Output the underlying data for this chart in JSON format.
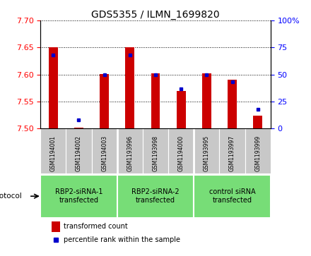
{
  "title": "GDS5355 / ILMN_1699820",
  "samples": [
    "GSM1194001",
    "GSM1194002",
    "GSM1194003",
    "GSM1193996",
    "GSM1193998",
    "GSM1194000",
    "GSM1193995",
    "GSM1193997",
    "GSM1193999"
  ],
  "red_values": [
    7.651,
    7.502,
    7.601,
    7.651,
    7.602,
    7.57,
    7.602,
    7.59,
    7.524
  ],
  "blue_values": [
    68,
    8,
    50,
    68,
    50,
    37,
    50,
    43,
    18
  ],
  "ylim_left": [
    7.5,
    7.7
  ],
  "ylim_right": [
    0,
    100
  ],
  "yticks_left": [
    7.5,
    7.55,
    7.6,
    7.65,
    7.7
  ],
  "yticks_right": [
    0,
    25,
    50,
    75,
    100
  ],
  "protocols": [
    {
      "label": "RBP2-siRNA-1\ntransfected",
      "start": 0,
      "end": 3
    },
    {
      "label": "RBP2-siRNA-2\ntransfected",
      "start": 3,
      "end": 6
    },
    {
      "label": "control siRNA\ntransfected",
      "start": 6,
      "end": 9
    }
  ],
  "bar_color": "#CC0000",
  "dot_color": "#0000CC",
  "green_color": "#77DD77",
  "grey_color": "#C8C8C8",
  "legend_red": "transformed count",
  "legend_blue": "percentile rank within the sample",
  "protocol_label": "protocol",
  "bar_width": 0.35,
  "baseline": 7.5
}
